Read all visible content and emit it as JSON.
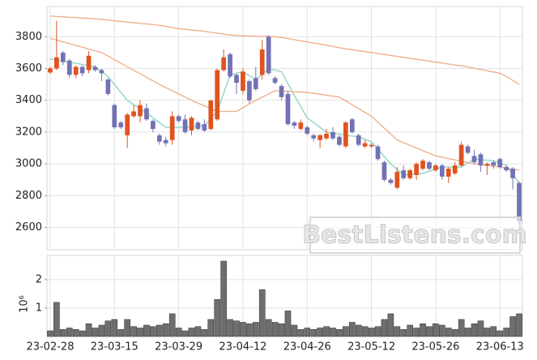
{
  "chart_data": [
    {
      "type": "candlestick",
      "open": [
        3575,
        3600,
        3700,
        3650,
        3560,
        3610,
        3590,
        3610,
        3590,
        3530,
        3370,
        3260,
        3180,
        3300,
        3300,
        3350,
        3270,
        3180,
        3150,
        3150,
        3300,
        3280,
        3210,
        3260,
        3250,
        3220,
        3280,
        3590,
        3690,
        3560,
        3460,
        3520,
        3540,
        3560,
        3800,
        3540,
        3490,
        3440,
        3260,
        3220,
        3230,
        3180,
        3150,
        3160,
        3200,
        3170,
        3110,
        3280,
        3180,
        3110,
        3110,
        3110,
        3010,
        2900,
        2850,
        2960,
        2910,
        2930,
        2970,
        3010,
        2960,
        2990,
        2920,
        2940,
        2990,
        3110,
        3050,
        3060,
        2990,
        3010,
        3030,
        2980,
        2970,
        2880
      ],
      "high": [
        3610,
        3900,
        3710,
        3660,
        3620,
        3620,
        3710,
        3620,
        3600,
        3540,
        3380,
        3270,
        3320,
        3370,
        3400,
        3380,
        3280,
        3190,
        3170,
        3330,
        3310,
        3310,
        3300,
        3270,
        3280,
        3400,
        3600,
        3720,
        3700,
        3570,
        3600,
        3530,
        3610,
        3780,
        3810,
        3550,
        3500,
        3460,
        3270,
        3280,
        3240,
        3190,
        3190,
        3220,
        3230,
        3180,
        3270,
        3290,
        3190,
        3150,
        3130,
        3120,
        3020,
        2910,
        2980,
        2990,
        2970,
        3010,
        3030,
        3020,
        3000,
        3000,
        2980,
        3010,
        3140,
        3120,
        3090,
        3070,
        3010,
        3020,
        3040,
        2990,
        2980,
        2890
      ],
      "low": [
        3565,
        3590,
        3620,
        3540,
        3540,
        3550,
        3570,
        3580,
        3520,
        3430,
        3220,
        3220,
        3100,
        3290,
        3260,
        3270,
        3200,
        3120,
        3110,
        3120,
        3260,
        3190,
        3180,
        3210,
        3200,
        3210,
        3270,
        3580,
        3540,
        3440,
        3440,
        3380,
        3460,
        3530,
        3560,
        3500,
        3400,
        3240,
        3220,
        3210,
        3180,
        3140,
        3100,
        3150,
        3150,
        3110,
        3100,
        3190,
        3110,
        3100,
        3100,
        3020,
        2890,
        2870,
        2840,
        2900,
        2900,
        2900,
        2960,
        2960,
        2950,
        2900,
        2880,
        2930,
        2980,
        3060,
        3000,
        2950,
        2930,
        2970,
        2970,
        2950,
        2840,
        2620
      ],
      "close": [
        3600,
        3670,
        3640,
        3560,
        3610,
        3570,
        3680,
        3590,
        3570,
        3440,
        3230,
        3230,
        3310,
        3330,
        3370,
        3280,
        3220,
        3140,
        3130,
        3300,
        3270,
        3200,
        3290,
        3220,
        3210,
        3400,
        3590,
        3670,
        3550,
        3510,
        3580,
        3400,
        3470,
        3720,
        3570,
        3510,
        3420,
        3250,
        3240,
        3260,
        3190,
        3160,
        3180,
        3190,
        3160,
        3120,
        3260,
        3200,
        3120,
        3130,
        3120,
        3030,
        2900,
        2880,
        2950,
        2910,
        2960,
        3000,
        3020,
        2970,
        2990,
        2920,
        2970,
        2990,
        3120,
        3070,
        3010,
        2990,
        3000,
        2990,
        2980,
        2960,
        2910,
        2640
      ],
      "up_color": "#e0531f",
      "down_color": "#7272b4",
      "lines": [
        {
          "color": "#8fd6c4",
          "values": [
            3660,
            3653,
            3647,
            3640,
            3633,
            3625,
            3618,
            3610,
            3580,
            3550,
            3500,
            3450,
            3400,
            3373,
            3347,
            3320,
            3290,
            3260,
            3230,
            3230,
            3230,
            3230,
            3233,
            3237,
            3240,
            3285,
            3330,
            3445,
            3560,
            3570,
            3580,
            3555,
            3530,
            3565,
            3600,
            3590,
            3580,
            3505,
            3430,
            3360,
            3290,
            3260,
            3230,
            3200,
            3193,
            3187,
            3180,
            3175,
            3170,
            3155,
            3140,
            3093,
            3047,
            3000,
            2965,
            2930,
            2933,
            2937,
            2940,
            2953,
            2967,
            2980,
            2980,
            2980,
            2980,
            3005,
            3030,
            3027,
            3023,
            3020,
            3005,
            2990,
            2935,
            2880
          ]
        },
        {
          "color": "#eeb090",
          "values": [
            3790,
            3779,
            3768,
            3756,
            3745,
            3734,
            3722,
            3711,
            3700,
            3678,
            3656,
            3633,
            3611,
            3589,
            3567,
            3544,
            3522,
            3500,
            3480,
            3460,
            3440,
            3420,
            3400,
            3382,
            3365,
            3347,
            3330,
            3330,
            3330,
            3330,
            3353,
            3377,
            3400,
            3420,
            3440,
            3460,
            3458,
            3456,
            3454,
            3452,
            3450,
            3444,
            3438,
            3432,
            3426,
            3420,
            3396,
            3372,
            3348,
            3324,
            3300,
            3262,
            3225,
            3188,
            3150,
            3133,
            3117,
            3100,
            3083,
            3067,
            3050,
            3042,
            3033,
            3025,
            3017,
            3008,
            3000,
            2995,
            2990,
            2985,
            2980,
            2973,
            2967,
            2960
          ]
        },
        {
          "color": "#eeb090",
          "values": [
            3930,
            3927,
            3925,
            3922,
            3920,
            3917,
            3915,
            3912,
            3910,
            3905,
            3900,
            3896,
            3892,
            3888,
            3884,
            3880,
            3876,
            3872,
            3866,
            3858,
            3850,
            3846,
            3842,
            3838,
            3834,
            3828,
            3822,
            3816,
            3810,
            3808,
            3806,
            3804,
            3803,
            3802,
            3801,
            3800,
            3795,
            3788,
            3781,
            3774,
            3767,
            3760,
            3753,
            3746,
            3739,
            3730,
            3724,
            3718,
            3712,
            3706,
            3700,
            3694,
            3688,
            3682,
            3676,
            3670,
            3664,
            3658,
            3652,
            3646,
            3640,
            3634,
            3628,
            3622,
            3616,
            3610,
            3602,
            3594,
            3586,
            3578,
            3570,
            3550,
            3525,
            3500
          ]
        }
      ],
      "ylim": [
        2460,
        3990
      ],
      "yticks": [
        2600,
        2800,
        3000,
        3200,
        3400,
        3600,
        3800
      ],
      "grid": true,
      "annotation": "BestListens.com"
    },
    {
      "type": "bar",
      "categories": [
        "23-02-28",
        null,
        null,
        null,
        null,
        null,
        null,
        null,
        null,
        null,
        "23-03-15",
        null,
        null,
        null,
        null,
        null,
        null,
        null,
        null,
        null,
        "23-03-29",
        null,
        null,
        null,
        null,
        null,
        null,
        null,
        null,
        null,
        "23-04-12",
        null,
        null,
        null,
        null,
        null,
        null,
        null,
        null,
        null,
        "23-04-26",
        null,
        null,
        null,
        null,
        null,
        null,
        null,
        null,
        null,
        "23-05-12",
        null,
        null,
        null,
        null,
        null,
        null,
        null,
        null,
        null,
        "23-05-26",
        null,
        null,
        null,
        null,
        null,
        null,
        null,
        null,
        null,
        "23-06-13",
        null,
        null,
        null
      ],
      "values": [
        0.2,
        1.2,
        0.25,
        0.3,
        0.25,
        0.2,
        0.45,
        0.3,
        0.4,
        0.55,
        0.6,
        0.25,
        0.6,
        0.35,
        0.3,
        0.4,
        0.35,
        0.4,
        0.45,
        0.8,
        0.3,
        0.2,
        0.3,
        0.35,
        0.25,
        0.6,
        1.3,
        2.65,
        0.6,
        0.55,
        0.5,
        0.45,
        0.5,
        1.65,
        0.6,
        0.5,
        0.45,
        0.9,
        0.4,
        0.25,
        0.3,
        0.25,
        0.3,
        0.35,
        0.3,
        0.25,
        0.35,
        0.5,
        0.4,
        0.35,
        0.3,
        0.35,
        0.6,
        0.8,
        0.35,
        0.25,
        0.4,
        0.3,
        0.45,
        0.35,
        0.45,
        0.4,
        0.3,
        0.25,
        0.6,
        0.3,
        0.45,
        0.55,
        0.3,
        0.35,
        0.2,
        0.3,
        0.7,
        0.8
      ],
      "color": "#6e6e6e",
      "ylim": [
        0,
        2.85
      ],
      "yticks": [
        1,
        2
      ],
      "y_label": "10⁶",
      "grid": true
    }
  ]
}
